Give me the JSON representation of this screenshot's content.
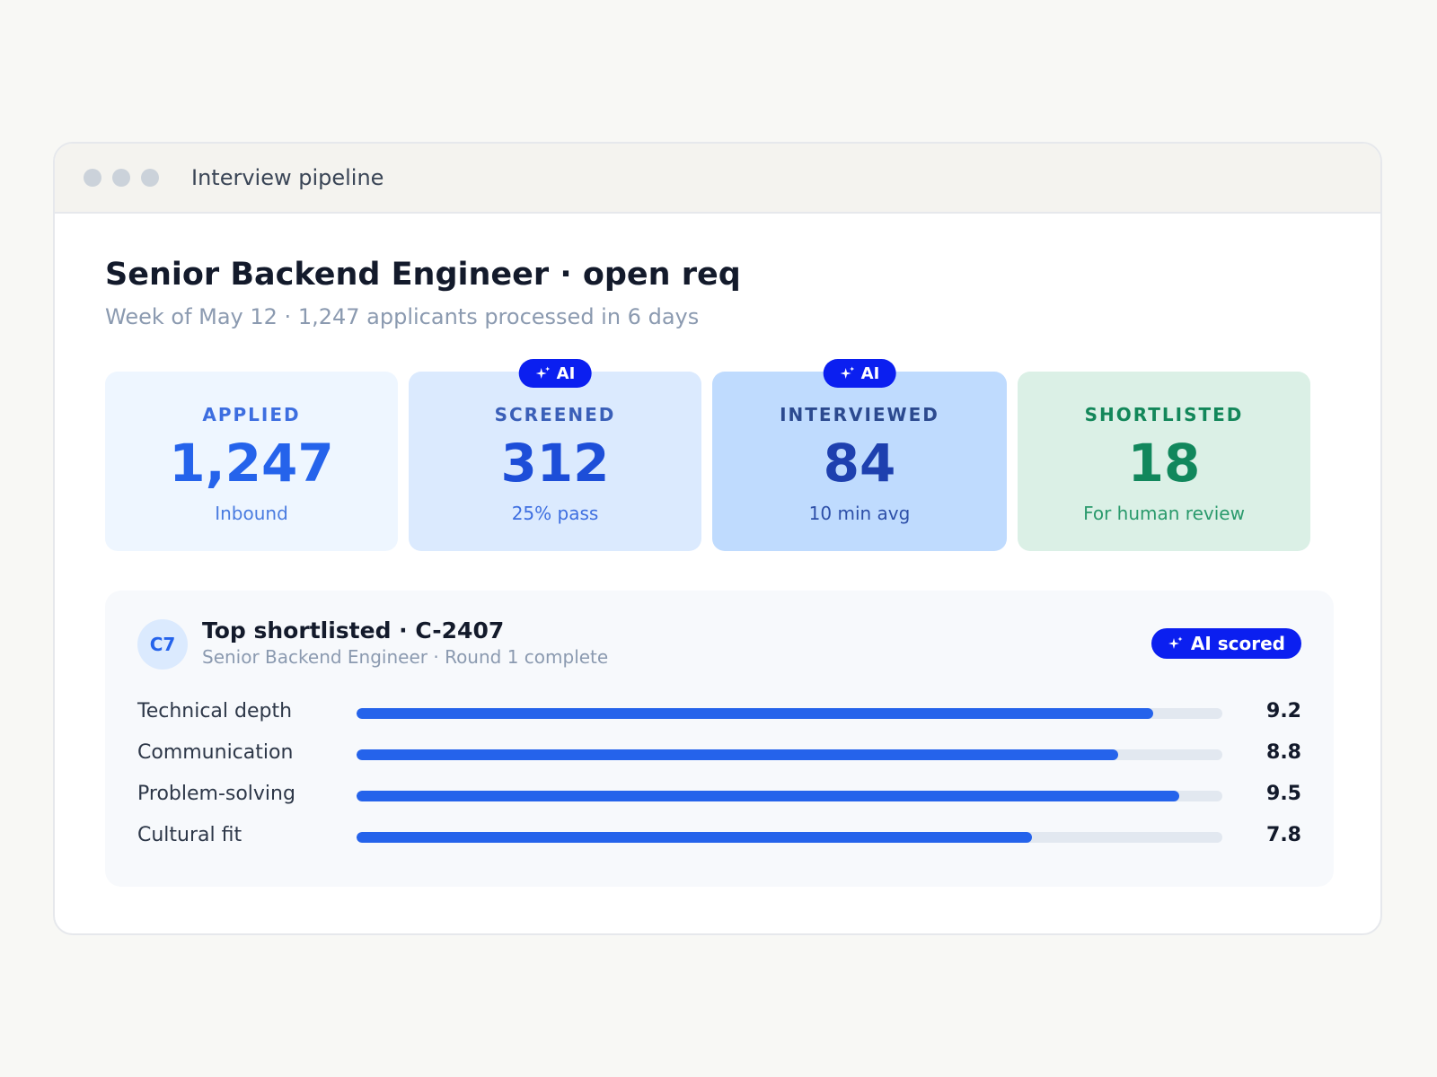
{
  "window": {
    "title": "Interview pipeline"
  },
  "header": {
    "title": "Senior Backend Engineer · open req",
    "subtitle": "Week of May 12 · 1,247 applicants processed in 6 days"
  },
  "stats": [
    {
      "label": "APPLIED",
      "value": "1,247",
      "sub": "Inbound",
      "ai": false,
      "bg": "#eef6ff",
      "label_color": "#3d6ee0",
      "value_color": "#2563eb",
      "sub_color": "#4a7ce0"
    },
    {
      "label": "SCREENED",
      "value": "312",
      "sub": "25% pass",
      "ai": true,
      "ai_label": "AI",
      "bg": "#dbeafe",
      "label_color": "#3a5fb8",
      "value_color": "#1d4ed8",
      "sub_color": "#3d6ee0"
    },
    {
      "label": "INTERVIEWED",
      "value": "84",
      "sub": "10 min avg",
      "ai": true,
      "ai_label": "AI",
      "bg": "#bfdbfe",
      "label_color": "#2c4a8f",
      "value_color": "#1e40af",
      "sub_color": "#2d4fa8"
    },
    {
      "label": "SHORTLISTED",
      "value": "18",
      "sub": "For human review",
      "ai": false,
      "bg": "#dbf0e6",
      "label_color": "#13875a",
      "value_color": "#11875c",
      "sub_color": "#2a9a6c"
    }
  ],
  "candidate": {
    "avatar": "C7",
    "title": "Top shortlisted · C-2407",
    "subtitle": "Senior Backend Engineer · Round 1 complete",
    "badge": "AI scored",
    "badge_icon": "sparkle-icon",
    "scores": [
      {
        "label": "Technical depth",
        "value": "9.2",
        "fraction": 0.92
      },
      {
        "label": "Communication",
        "value": "8.8",
        "fraction": 0.88
      },
      {
        "label": "Problem-solving",
        "value": "9.5",
        "fraction": 0.95
      },
      {
        "label": "Cultural fit",
        "value": "7.8",
        "fraction": 0.78
      }
    ]
  },
  "colors": {
    "accent": "#0b1ff0",
    "bar": "#2563eb",
    "track": "#e2e8f0"
  }
}
